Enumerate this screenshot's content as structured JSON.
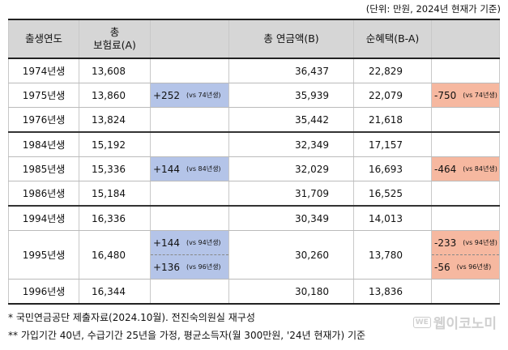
{
  "unit_note": "(단위: 만원, 2024년 현재가 기준)",
  "headers": {
    "birth_year": "출생연도",
    "premium_line1": "총",
    "premium_line2": "보험료(A)",
    "pension": "총 연금액(B)",
    "net_benefit": "순혜택(B-A)"
  },
  "rows": [
    {
      "year": "1974년생",
      "premium": "13,608",
      "pension": "36,437",
      "net": "22,829"
    },
    {
      "year": "1975년생",
      "premium": "13,860",
      "premium_diff": [
        {
          "value": "+252",
          "note": "(vs 74년생)"
        }
      ],
      "pension": "35,939",
      "net": "22,079",
      "net_diff": [
        {
          "value": "-750",
          "note": "(vs 74년생)"
        }
      ]
    },
    {
      "year": "1976년생",
      "premium": "13,824",
      "pension": "35,442",
      "net": "21,618"
    },
    {
      "year": "1984년생",
      "premium": "15,192",
      "pension": "32,349",
      "net": "17,157"
    },
    {
      "year": "1985년생",
      "premium": "15,336",
      "premium_diff": [
        {
          "value": "+144",
          "note": "(vs 84년생)"
        }
      ],
      "pension": "32,029",
      "net": "16,693",
      "net_diff": [
        {
          "value": "-464",
          "note": "(vs 84년생)"
        }
      ]
    },
    {
      "year": "1986년생",
      "premium": "15,184",
      "pension": "31,709",
      "net": "16,525"
    },
    {
      "year": "1994년생",
      "premium": "16,336",
      "pension": "30,349",
      "net": "14,013"
    },
    {
      "year": "1995년생",
      "premium": "16,480",
      "premium_diff": [
        {
          "value": "+144",
          "note": "(vs 94년생)"
        },
        {
          "value": "+136",
          "note": "(vs 96년생)"
        }
      ],
      "pension": "30,260",
      "net": "13,780",
      "net_diff": [
        {
          "value": "-233",
          "note": "(vs 94년생)"
        },
        {
          "value": "-56",
          "note": "(vs 96년생)"
        }
      ]
    },
    {
      "year": "1996년생",
      "premium": "16,344",
      "pension": "30,180",
      "net": "13,836"
    }
  ],
  "notes": [
    "*  국민연금공단 제출자료(2024.10월). 전진숙의원실 재구성",
    "**  가입기간 40년, 수급기간 25년을 가정, 평균소득자(월 300만원, '24년 현재가) 기준"
  ],
  "watermark": {
    "badge": "WE",
    "text": "웹이코노미"
  },
  "colors": {
    "plus_bg": "#b4c4e8",
    "minus_bg": "#f6b8a0",
    "header_bg": "#d6d6d6"
  }
}
